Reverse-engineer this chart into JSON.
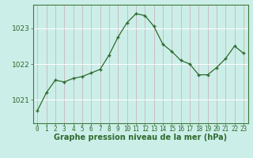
{
  "x": [
    0,
    1,
    2,
    3,
    4,
    5,
    6,
    7,
    8,
    9,
    10,
    11,
    12,
    13,
    14,
    15,
    16,
    17,
    18,
    19,
    20,
    21,
    22,
    23
  ],
  "y": [
    1020.7,
    1021.2,
    1021.55,
    1021.5,
    1021.6,
    1021.65,
    1021.75,
    1021.85,
    1022.25,
    1022.75,
    1023.15,
    1023.4,
    1023.35,
    1023.05,
    1022.55,
    1022.35,
    1022.1,
    1022.0,
    1021.7,
    1021.7,
    1021.9,
    1022.15,
    1022.5,
    1022.3
  ],
  "line_color": "#2d6a2d",
  "marker": "+",
  "marker_size": 3.5,
  "marker_edge_width": 1.0,
  "bg_color": "#cceee8",
  "grid_color_v": "#c8aab4",
  "grid_color_h": "#ffffff",
  "ylabel_ticks": [
    1021,
    1022,
    1023
  ],
  "xlabel": "Graphe pression niveau de la mer (hPa)",
  "ylim": [
    1020.35,
    1023.65
  ],
  "xlim": [
    -0.5,
    23.5
  ],
  "axis_color": "#3d7a3d",
  "tick_color": "#2d6a2d",
  "label_color": "#2d6a2d",
  "xlabel_fontsize": 7.0,
  "ytick_fontsize": 6.5,
  "xtick_fontsize": 5.5,
  "line_width": 0.9
}
